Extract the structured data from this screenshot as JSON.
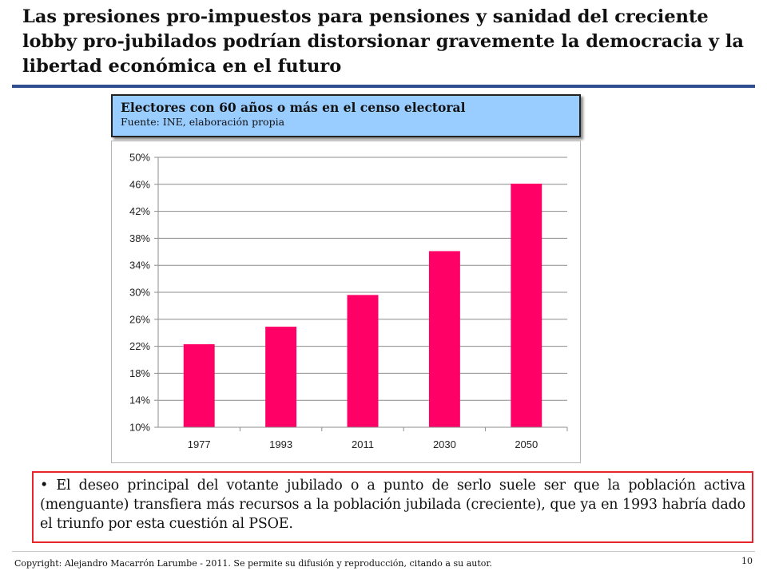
{
  "slide": {
    "title": "Las presiones pro-impuestos  para pensiones y sanidad del creciente lobby pro-jubilados podrían distorsionar gravemente la democracia y la libertad económica en el futuro",
    "chart_header": {
      "title": "Electores con 60 años o más en el censo electoral",
      "source": "Fuente: INE, elaboración propia"
    },
    "bullet_text": "El deseo principal del votante jubilado o a punto de serlo suele ser que la población activa (menguante) transfiera más recursos a la población jubilada (creciente), que ya en 1993 habría dado el triunfo por esta cuestión al PSOE.",
    "footer": "Copyright: Alejandro Macarrón Larumbe - 2011. Se permite su difusión y reproducción, citando a su autor.",
    "page_number": "10",
    "colors": {
      "title_rule": "#2e4e8f",
      "header_bg": "#99ccff",
      "bar": "#ff0066",
      "bullet_border": "#e8252b"
    }
  },
  "chart_data": {
    "type": "bar",
    "title": "Electores con 60 años o más en el censo electoral",
    "categories": [
      "1977",
      "1993",
      "2011",
      "2030",
      "2050"
    ],
    "values": [
      22.3,
      24.9,
      29.6,
      36.1,
      46.1
    ],
    "ylim": [
      10,
      50
    ],
    "yticks": [
      10,
      14,
      18,
      22,
      26,
      30,
      34,
      38,
      42,
      46,
      50
    ],
    "ytick_labels": [
      "10%",
      "14%",
      "18%",
      "22%",
      "26%",
      "30%",
      "34%",
      "38%",
      "42%",
      "46%",
      "50%"
    ],
    "xlabel": "",
    "ylabel": "",
    "grid": true,
    "legend": "none"
  }
}
